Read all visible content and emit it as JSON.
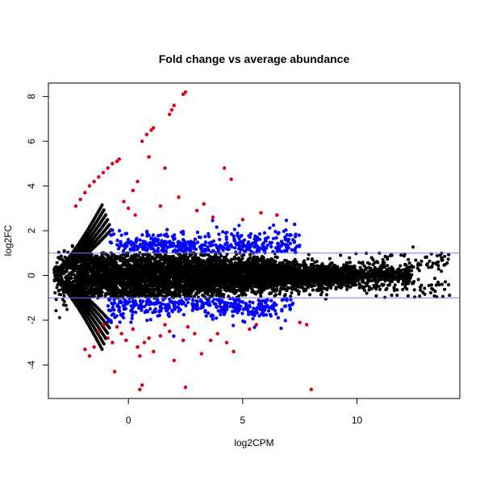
{
  "chart_data": {
    "type": "scatter",
    "title": "Fold change vs average abundance",
    "xlabel": "log2CPM",
    "ylabel": "log2FC",
    "xlim": [
      -3.5,
      14.5
    ],
    "ylim": [
      -5.5,
      8.6
    ],
    "x_ticks": [
      0,
      5,
      10
    ],
    "y_ticks": [
      -4,
      -2,
      0,
      2,
      4,
      6,
      8
    ],
    "grid": false,
    "threshold_lines": [
      1,
      -1
    ],
    "colors": {
      "nonsignificant": "#000000",
      "fold_change_significant": "#0000FF",
      "highly_significant": "#E0001B",
      "threshold_line": "#7A7AFF",
      "axis": "#000000"
    },
    "series": [
      {
        "color": "#E0001B",
        "points": [
          [
            -1.9,
            -3.3
          ],
          [
            -1.7,
            -3.6
          ],
          [
            -1.5,
            -3.2
          ],
          [
            -1.3,
            -2.5
          ],
          [
            -1.1,
            -2.2
          ],
          [
            -0.9,
            -2.8
          ],
          [
            -0.7,
            -3.0
          ],
          [
            -0.5,
            -2.3
          ],
          [
            -0.3,
            -2.6
          ],
          [
            -0.1,
            -2.9
          ],
          [
            0.2,
            -2.4
          ],
          [
            0.4,
            -3.2
          ],
          [
            0.5,
            -3.6
          ],
          [
            0.7,
            -3.0
          ],
          [
            0.9,
            -2.8
          ],
          [
            1.1,
            -3.4
          ],
          [
            1.4,
            -2.7
          ],
          [
            1.6,
            -2.2
          ],
          [
            1.8,
            -2.5
          ],
          [
            2.0,
            -3.8
          ],
          [
            2.4,
            -2.9
          ],
          [
            2.6,
            -2.3
          ],
          [
            2.9,
            -2.6
          ],
          [
            3.2,
            -3.5
          ],
          [
            3.6,
            -2.9
          ],
          [
            3.9,
            -2.6
          ],
          [
            4.3,
            -3.0
          ],
          [
            4.6,
            -3.4
          ],
          [
            5.3,
            -2.4
          ],
          [
            5.6,
            -2.2
          ],
          [
            7.5,
            -2.1
          ],
          [
            7.8,
            -2.2
          ],
          [
            0.5,
            -5.1
          ],
          [
            0.6,
            -4.9
          ],
          [
            2.5,
            -5.0
          ],
          [
            8.0,
            -5.1
          ],
          [
            -0.6,
            -4.3
          ],
          [
            -2.3,
            3.1
          ],
          [
            -2.1,
            3.4
          ],
          [
            -1.9,
            3.7
          ],
          [
            -1.7,
            4.0
          ],
          [
            -1.5,
            4.2
          ],
          [
            -1.3,
            4.4
          ],
          [
            -1.1,
            4.6
          ],
          [
            -0.9,
            4.8
          ],
          [
            -0.7,
            5.0
          ],
          [
            -0.5,
            5.1
          ],
          [
            -0.4,
            5.2
          ],
          [
            0.0,
            3.0
          ],
          [
            0.2,
            3.8
          ],
          [
            0.4,
            4.2
          ],
          [
            0.6,
            6.0
          ],
          [
            0.8,
            6.3
          ],
          [
            0.9,
            5.3
          ],
          [
            1.0,
            6.5
          ],
          [
            1.1,
            6.6
          ],
          [
            1.4,
            3.1
          ],
          [
            1.6,
            4.8
          ],
          [
            1.8,
            7.2
          ],
          [
            1.9,
            7.4
          ],
          [
            2.0,
            7.6
          ],
          [
            2.2,
            3.5
          ],
          [
            2.4,
            8.1
          ],
          [
            2.5,
            8.2
          ],
          [
            3.0,
            2.9
          ],
          [
            3.3,
            3.2
          ],
          [
            3.7,
            2.6
          ],
          [
            4.2,
            4.8
          ],
          [
            4.5,
            4.3
          ],
          [
            5.0,
            2.5
          ],
          [
            5.8,
            2.8
          ],
          [
            6.5,
            2.7
          ],
          [
            -0.2,
            3.3
          ],
          [
            0.3,
            2.7
          ]
        ]
      }
    ]
  }
}
